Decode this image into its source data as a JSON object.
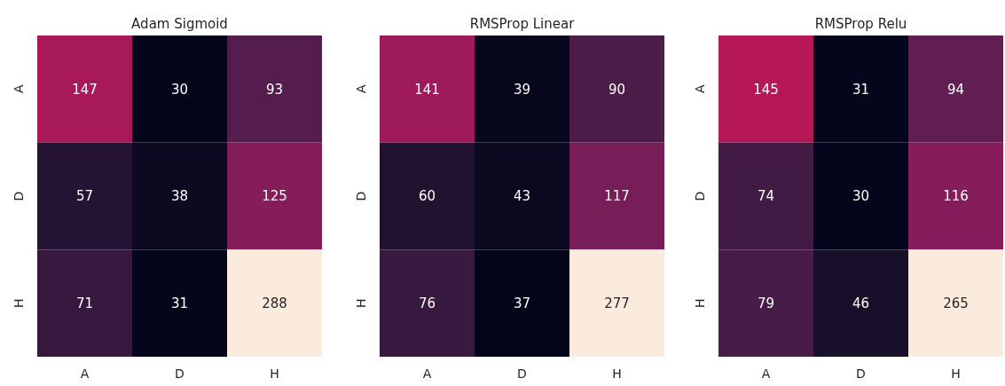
{
  "chart_data": [
    {
      "type": "heatmap",
      "title": "Adam Sigmoid",
      "categories": [
        "A",
        "D",
        "H"
      ],
      "y_categories": [
        "A",
        "D",
        "H"
      ],
      "cells": [
        [
          147,
          30,
          93
        ],
        [
          57,
          38,
          125
        ],
        [
          71,
          31,
          288
        ]
      ],
      "data_labels": true
    },
    {
      "type": "heatmap",
      "title": "RMSProp Linear",
      "categories": [
        "A",
        "D",
        "H"
      ],
      "y_categories": [
        "A",
        "D",
        "H"
      ],
      "cells": [
        [
          141,
          39,
          90
        ],
        [
          60,
          43,
          117
        ],
        [
          76,
          37,
          277
        ]
      ],
      "data_labels": true
    },
    {
      "type": "heatmap",
      "title": "RMSProp Relu",
      "categories": [
        "A",
        "D",
        "H"
      ],
      "y_categories": [
        "A",
        "D",
        "H"
      ],
      "cells": [
        [
          145,
          31,
          94
        ],
        [
          74,
          30,
          116
        ],
        [
          79,
          46,
          265
        ]
      ],
      "data_labels": true
    }
  ]
}
